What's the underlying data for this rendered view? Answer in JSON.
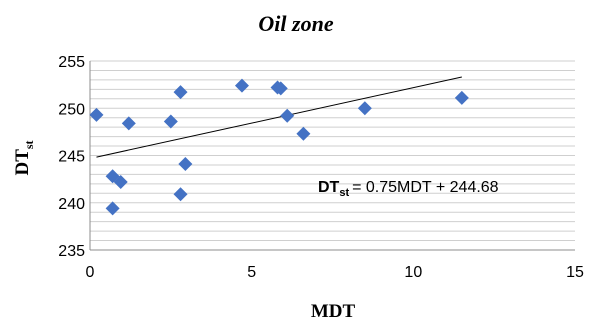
{
  "chart_data": {
    "type": "scatter",
    "title": "Oil zone",
    "xlabel": "MDT",
    "ylabel_main": "DT",
    "ylabel_sub": "st",
    "xlim": [
      0,
      15
    ],
    "ylim": [
      235,
      255
    ],
    "x_ticks": [
      0,
      5,
      10,
      15
    ],
    "y_ticks": [
      235,
      240,
      245,
      250,
      255
    ],
    "grid": "horizontal",
    "marker_color": "#4472C4",
    "points": [
      {
        "x": 0.2,
        "y": 249.3
      },
      {
        "x": 0.7,
        "y": 242.8
      },
      {
        "x": 0.7,
        "y": 239.4
      },
      {
        "x": 0.95,
        "y": 242.2
      },
      {
        "x": 1.2,
        "y": 248.4
      },
      {
        "x": 2.5,
        "y": 248.6
      },
      {
        "x": 2.8,
        "y": 251.7
      },
      {
        "x": 2.8,
        "y": 240.9
      },
      {
        "x": 2.95,
        "y": 244.1
      },
      {
        "x": 4.7,
        "y": 252.4
      },
      {
        "x": 5.8,
        "y": 252.2
      },
      {
        "x": 5.9,
        "y": 252.1
      },
      {
        "x": 6.1,
        "y": 249.2
      },
      {
        "x": 6.6,
        "y": 247.3
      },
      {
        "x": 8.5,
        "y": 250.0
      },
      {
        "x": 11.5,
        "y": 251.1
      }
    ],
    "trendline": {
      "slope": 0.75,
      "intercept": 244.68,
      "x_start": 0.2,
      "x_end": 11.5
    },
    "equation": {
      "lhs_main": "DT",
      "lhs_sub": "st",
      "rhs": "= 0.75MDT + 244.68"
    }
  }
}
